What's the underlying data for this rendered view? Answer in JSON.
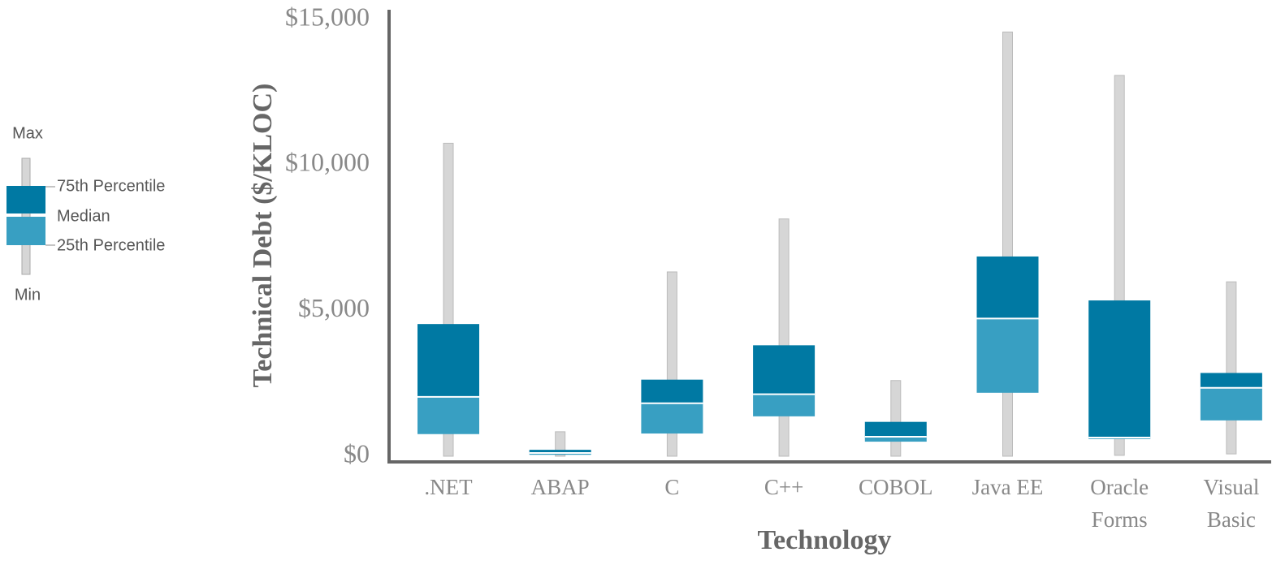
{
  "chart_data": {
    "type": "box",
    "x_label": "Technology",
    "y_label": "Technical Debt ($/KLOC)",
    "categories": [
      ".NET",
      "ABAP",
      "C",
      "C++",
      "COBOL",
      "Java EE",
      "Oracle Forms",
      "Visual Basic"
    ],
    "min": [
      0,
      0,
      0,
      0,
      0,
      0,
      30,
      80
    ],
    "q1": [
      760,
      50,
      780,
      1370,
      500,
      2180,
      590,
      1230
    ],
    "median": [
      2040,
      110,
      1820,
      2130,
      670,
      4730,
      640,
      2350
    ],
    "q3": [
      4540,
      220,
      2630,
      3810,
      1180,
      6860,
      5350,
      2860
    ],
    "max": [
      10750,
      840,
      6330,
      8150,
      2600,
      14570,
      13080,
      5990
    ],
    "ylim": [
      0,
      15000
    ],
    "yticks": [
      {
        "value": 0,
        "label": "$0"
      },
      {
        "value": 5000,
        "label": "$5,000"
      },
      {
        "value": 10000,
        "label": "$10,000"
      },
      {
        "value": 15000,
        "label": "$15,000"
      }
    ],
    "colors": {
      "upper": "#0079a3",
      "lower": "#389fc2",
      "whisker": "#d6d6d6"
    },
    "legend": {
      "max": "Max",
      "q3": "75th Percentile",
      "median": "Median",
      "q1": "25th Percentile",
      "min": "Min"
    }
  }
}
